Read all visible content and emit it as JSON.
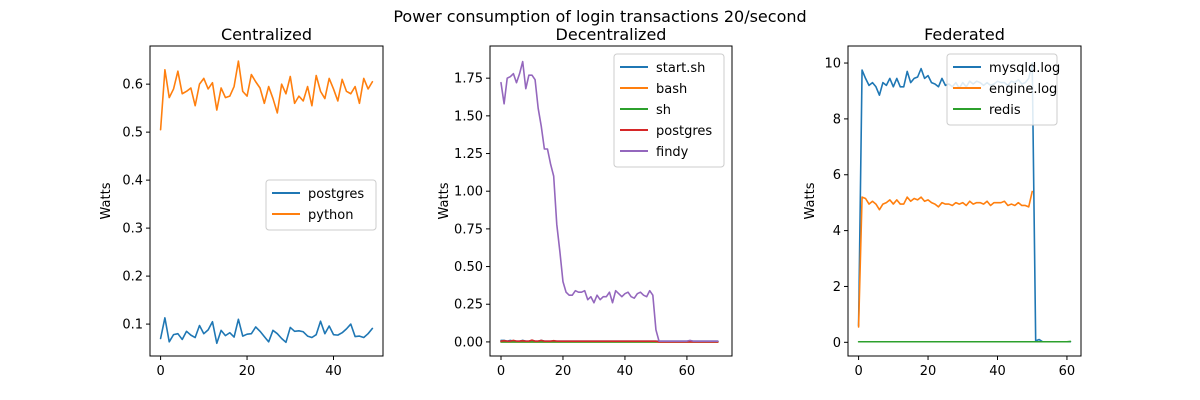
{
  "figure": {
    "suptitle": "Power consumption of login transactions 20/second"
  },
  "chart_data": [
    {
      "type": "line",
      "title": "Centralized",
      "xlabel": "",
      "ylabel": "Watts",
      "xlim": [
        -2.45,
        51.45
      ],
      "ylim": [
        0.0335,
        0.6795
      ],
      "xticks": [
        0,
        20,
        40
      ],
      "yticks": [
        0.1,
        0.2,
        0.3,
        0.4,
        0.5,
        0.6
      ],
      "ytick_labels": [
        "0.1",
        "0.2",
        "0.3",
        "0.4",
        "0.5",
        "0.6"
      ],
      "legend": "center-right",
      "grid": false,
      "series": [
        {
          "name": "postgres",
          "color": "#1f77b4",
          "values": [
            0.07,
            0.113,
            0.063,
            0.078,
            0.08,
            0.068,
            0.085,
            0.077,
            0.072,
            0.097,
            0.08,
            0.088,
            0.105,
            0.06,
            0.087,
            0.076,
            0.082,
            0.073,
            0.11,
            0.075,
            0.079,
            0.08,
            0.094,
            0.085,
            0.074,
            0.063,
            0.087,
            0.08,
            0.07,
            0.062,
            0.093,
            0.085,
            0.086,
            0.084,
            0.075,
            0.072,
            0.078,
            0.106,
            0.08,
            0.096,
            0.078,
            0.077,
            0.082,
            0.09,
            0.1,
            0.074,
            0.075,
            0.072,
            0.08,
            0.091
          ]
        },
        {
          "name": "python",
          "color": "#ff7f0e",
          "values": [
            0.505,
            0.63,
            0.572,
            0.59,
            0.627,
            0.58,
            0.585,
            0.592,
            0.555,
            0.6,
            0.612,
            0.59,
            0.603,
            0.546,
            0.592,
            0.572,
            0.575,
            0.595,
            0.648,
            0.585,
            0.575,
            0.62,
            0.605,
            0.592,
            0.56,
            0.595,
            0.57,
            0.54,
            0.6,
            0.58,
            0.616,
            0.56,
            0.575,
            0.565,
            0.595,
            0.555,
            0.618,
            0.585,
            0.57,
            0.612,
            0.59,
            0.565,
            0.61,
            0.585,
            0.58,
            0.595,
            0.56,
            0.612,
            0.59,
            0.605
          ]
        }
      ]
    },
    {
      "type": "line",
      "title": "Decentralized",
      "xlabel": "",
      "ylabel": "Watts",
      "xlim": [
        -3.55,
        74.55
      ],
      "ylim": [
        -0.0935,
        1.9635
      ],
      "xticks": [
        0,
        20,
        40,
        60
      ],
      "yticks": [
        0,
        0.25,
        0.5,
        0.75,
        1.0,
        1.25,
        1.5,
        1.75
      ],
      "ytick_labels": [
        "0.00",
        "0.25",
        "0.50",
        "0.75",
        "1.00",
        "1.25",
        "1.50",
        "1.75"
      ],
      "legend": "top-right",
      "grid": false,
      "series": [
        {
          "name": "start.sh",
          "color": "#1f77b4",
          "values": [
            0.01,
            0.01,
            0.005,
            0.01,
            0.005,
            0.005,
            0.005,
            0.01,
            0.005,
            0.005,
            0.01,
            0.005,
            0.005,
            0.01,
            0.005,
            0.005,
            0.005,
            0.005,
            0.005,
            0.005,
            0.005,
            0.005,
            0.005,
            0.005,
            0.005,
            0.005,
            0.005,
            0.005,
            0.005,
            0.005,
            0.005,
            0.005,
            0.005,
            0.005,
            0.005,
            0.005,
            0.005,
            0.005,
            0.005,
            0.005,
            0.005,
            0.005,
            0.005,
            0.005,
            0.005,
            0.005,
            0.005,
            0.005,
            0.005,
            0.005,
            0.005,
            0.005,
            0.005,
            0.005,
            0.005,
            0.005,
            0.005,
            0.005,
            0.005,
            0.005,
            0.005,
            0.005,
            0.005,
            0.005,
            0.005,
            0.005,
            0.005,
            0.005,
            0.005,
            0.005,
            0.005
          ]
        },
        {
          "name": "bash",
          "color": "#ff7f0e",
          "values": [
            0,
            0,
            0,
            0,
            0,
            0,
            0,
            0,
            0,
            0,
            0,
            0,
            0,
            0,
            0,
            0,
            0,
            0,
            0,
            0,
            0,
            0,
            0,
            0,
            0,
            0,
            0,
            0,
            0,
            0,
            0,
            0,
            0,
            0,
            0,
            0,
            0,
            0,
            0,
            0,
            0,
            0,
            0,
            0,
            0,
            0,
            0,
            0,
            0,
            0,
            0,
            0,
            0,
            0,
            0,
            0,
            0,
            0,
            0,
            0,
            0,
            0,
            0,
            0,
            0,
            0,
            0,
            0,
            0,
            0,
            0
          ]
        },
        {
          "name": "sh",
          "color": "#2ca02c",
          "values": [
            0,
            0,
            0,
            0,
            0,
            0,
            0,
            0,
            0,
            0,
            0,
            0,
            0,
            0,
            0,
            0,
            0,
            0,
            0,
            0,
            0,
            0,
            0,
            0,
            0,
            0,
            0,
            0,
            0,
            0,
            0,
            0,
            0,
            0,
            0,
            0,
            0,
            0,
            0,
            0,
            0,
            0,
            0,
            0,
            0,
            0,
            0,
            0,
            0,
            0,
            0,
            0,
            0,
            0,
            0,
            0,
            0,
            0,
            0,
            0,
            0,
            0,
            0,
            0,
            0,
            0,
            0,
            0,
            0,
            0,
            0
          ]
        },
        {
          "name": "postgres",
          "color": "#d62728",
          "values": [
            0.005,
            0.008,
            0.005,
            0.005,
            0.01,
            0.005,
            0.005,
            0.008,
            0.005,
            0.005,
            0.012,
            0.005,
            0.005,
            0.01,
            0.005,
            0.005,
            0.005,
            0.008,
            0.005,
            0.005,
            0.005,
            0.005,
            0.005,
            0.005,
            0.005,
            0.005,
            0.005,
            0.005,
            0.005,
            0.005,
            0.005,
            0.005,
            0.005,
            0.005,
            0.005,
            0.005,
            0.005,
            0.005,
            0.005,
            0.005,
            0.005,
            0.005,
            0.005,
            0.005,
            0.005,
            0.005,
            0.005,
            0.005,
            0.005,
            0.005,
            0.005,
            0,
            0,
            0,
            0,
            0,
            0,
            0,
            0,
            0,
            0,
            0,
            0,
            0,
            0,
            0,
            0,
            0,
            0,
            0,
            0
          ]
        },
        {
          "name": "findy",
          "color": "#9467bd",
          "values": [
            1.72,
            1.58,
            1.75,
            1.76,
            1.78,
            1.72,
            1.78,
            1.86,
            1.68,
            1.77,
            1.77,
            1.74,
            1.55,
            1.43,
            1.28,
            1.28,
            1.18,
            1.1,
            0.78,
            0.6,
            0.4,
            0.33,
            0.31,
            0.31,
            0.34,
            0.33,
            0.33,
            0.34,
            0.28,
            0.3,
            0.26,
            0.31,
            0.28,
            0.3,
            0.3,
            0.33,
            0.26,
            0.34,
            0.32,
            0.3,
            0.32,
            0.33,
            0.3,
            0.29,
            0.32,
            0.33,
            0.31,
            0.3,
            0.34,
            0.31,
            0.08,
            0.005,
            0.005,
            0.005,
            0.005,
            0.005,
            0.005,
            0.005,
            0.005,
            0.005,
            0.005,
            0.01,
            0.005,
            0.005,
            0.005,
            0.005,
            0.005,
            0.005,
            0.005,
            0.005,
            0.005
          ]
        }
      ]
    },
    {
      "type": "line",
      "title": "Federated",
      "xlabel": "",
      "ylabel": "Watts",
      "xlim": [
        -3.05,
        64.05
      ],
      "ylim": [
        -0.49,
        10.61
      ],
      "xticks": [
        0,
        20,
        40,
        60
      ],
      "yticks": [
        0,
        2,
        4,
        6,
        8,
        10
      ],
      "ytick_labels": [
        "0",
        "2",
        "4",
        "6",
        "8",
        "10"
      ],
      "legend": "top-right",
      "grid": false,
      "series": [
        {
          "name": "mysqld.log",
          "color": "#1f77b4",
          "values": [
            0.6,
            9.75,
            9.45,
            9.2,
            9.3,
            9.15,
            8.85,
            9.3,
            9.2,
            9.45,
            9.15,
            9.45,
            9.15,
            9.15,
            9.7,
            9.3,
            9.45,
            9.5,
            9.8,
            9.45,
            9.55,
            9.3,
            9.25,
            9.15,
            9.45,
            9.2,
            9.25,
            9.15,
            9.3,
            9.1,
            9.3,
            9.15,
            9.35,
            9.25,
            9.35,
            9.3,
            9.2,
            9.3,
            9.2,
            9.25,
            9.35,
            9.3,
            9.3,
            9.2,
            9.35,
            9.3,
            9.4,
            9.25,
            9.3,
            9.45,
            10.0,
            0.05,
            0.1,
            0.02,
            0.02,
            0.02,
            0.02,
            0.02,
            0.02,
            0.02,
            0.02,
            0.02
          ]
        },
        {
          "name": "engine.log",
          "color": "#ff7f0e",
          "values": [
            0.55,
            5.2,
            5.15,
            4.95,
            5.05,
            4.95,
            4.75,
            4.95,
            5.0,
            5.1,
            4.95,
            5.1,
            4.95,
            4.95,
            5.2,
            5.05,
            5.15,
            5.1,
            5.2,
            5.05,
            5.1,
            5.0,
            4.95,
            4.85,
            5.0,
            4.95,
            4.95,
            4.9,
            5.0,
            4.95,
            5.0,
            4.9,
            5.05,
            4.95,
            5.0,
            5.0,
            4.95,
            5.05,
            4.9,
            5.0,
            5.0,
            5.0,
            5.05,
            4.9,
            4.95,
            4.9,
            5.0,
            4.9,
            4.9,
            4.85,
            5.4
          ]
        },
        {
          "name": "redis",
          "color": "#2ca02c",
          "values": [
            0.02,
            0.02,
            0.02,
            0.02,
            0.02,
            0.02,
            0.02,
            0.02,
            0.02,
            0.02,
            0.02,
            0.02,
            0.02,
            0.02,
            0.02,
            0.02,
            0.02,
            0.02,
            0.02,
            0.02,
            0.02,
            0.02,
            0.02,
            0.02,
            0.02,
            0.02,
            0.02,
            0.02,
            0.02,
            0.02,
            0.02,
            0.02,
            0.02,
            0.02,
            0.02,
            0.02,
            0.02,
            0.02,
            0.02,
            0.02,
            0.02,
            0.02,
            0.02,
            0.02,
            0.02,
            0.02,
            0.02,
            0.02,
            0.02,
            0.02,
            0.02,
            0.02,
            0.02,
            0.02,
            0.02,
            0.02,
            0.02,
            0.02,
            0.02,
            0.02,
            0.02,
            0.03
          ]
        }
      ]
    }
  ]
}
